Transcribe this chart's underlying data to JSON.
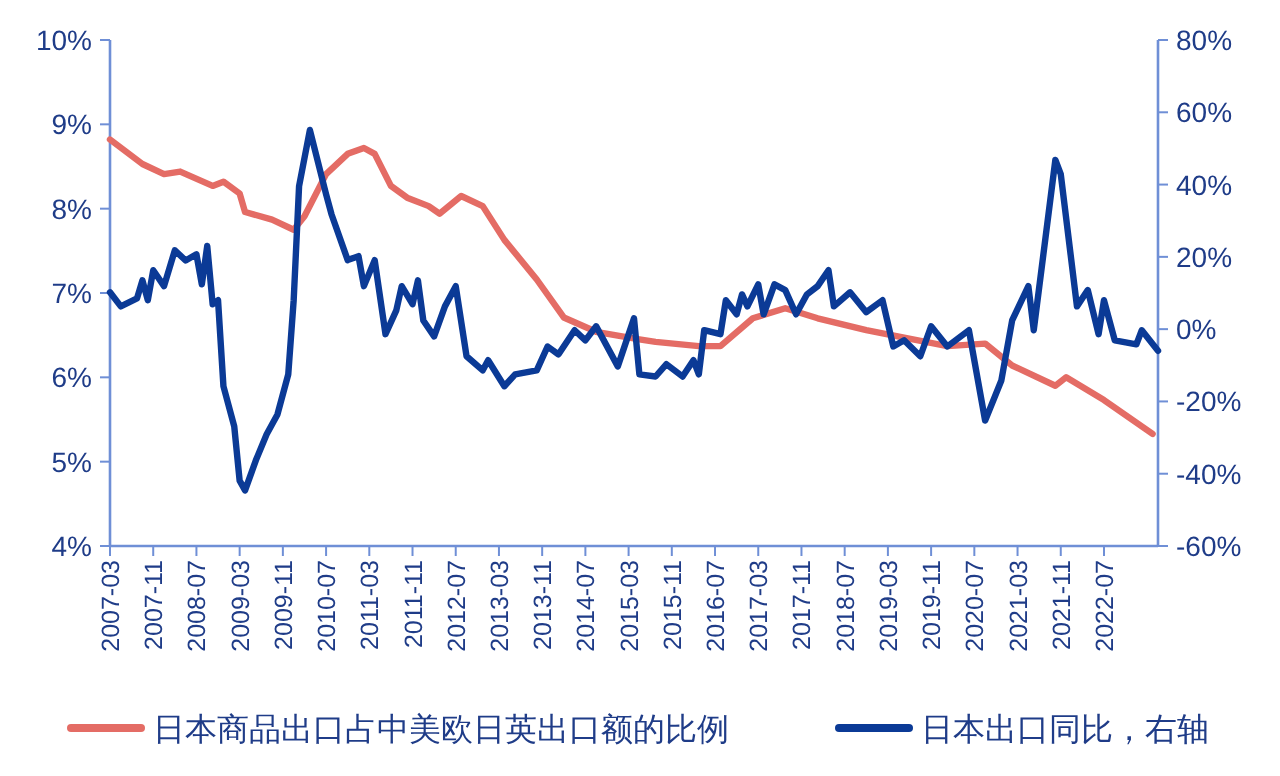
{
  "chart_data": {
    "type": "line",
    "xlim": [
      "2007-03",
      "2023-05"
    ],
    "xticks": [
      "2007-03",
      "2007-11",
      "2008-07",
      "2009-03",
      "2009-11",
      "2010-07",
      "2011-03",
      "2011-11",
      "2012-07",
      "2013-03",
      "2013-11",
      "2014-07",
      "2015-03",
      "2015-11",
      "2016-07",
      "2017-03",
      "2017-11",
      "2018-07",
      "2019-03",
      "2019-11",
      "2020-07",
      "2021-03",
      "2021-11",
      "2022-07"
    ],
    "ylim": [
      4,
      10
    ],
    "yticks": [
      {
        "value": 4,
        "label": "4%"
      },
      {
        "value": 5,
        "label": "5%"
      },
      {
        "value": 6,
        "label": "6%"
      },
      {
        "value": 7,
        "label": "7%"
      },
      {
        "value": 8,
        "label": "8%"
      },
      {
        "value": 9,
        "label": "9%"
      },
      {
        "value": 10,
        "label": "10%"
      }
    ],
    "y2lim": [
      -60,
      80
    ],
    "y2ticks": [
      {
        "value": -60,
        "label": "-60%"
      },
      {
        "value": -40,
        "label": "-40%"
      },
      {
        "value": -20,
        "label": "-20%"
      },
      {
        "value": 0,
        "label": "0%"
      },
      {
        "value": 20,
        "label": "20%"
      },
      {
        "value": 40,
        "label": "40%"
      },
      {
        "value": 60,
        "label": "60%"
      },
      {
        "value": 80,
        "label": "80%"
      }
    ],
    "grid": false,
    "legend": "bottom",
    "line_style": "solid",
    "marker": "none",
    "series": [
      {
        "name": "日本商品出口占中美欧日英出口额的比例",
        "color": "#e46c65",
        "x": [
          "2007-03",
          "2007-09",
          "2008-01",
          "2008-04",
          "2008-10",
          "2008-12",
          "2009-03",
          "2009-04",
          "2009-09",
          "2010-01",
          "2010-03",
          "2010-07",
          "2010-11",
          "2011-02",
          "2011-04",
          "2011-07",
          "2011-10",
          "2012-02",
          "2012-04",
          "2012-08",
          "2012-12",
          "2013-04",
          "2013-10",
          "2014-03",
          "2014-09",
          "2015-05",
          "2015-08",
          "2016-04",
          "2016-08",
          "2017-02",
          "2017-08",
          "2018-02",
          "2018-11",
          "2019-06",
          "2020-02",
          "2020-09",
          "2021-02",
          "2021-10",
          "2021-12",
          "2022-07",
          "2023-04"
        ],
        "values": [
          8.82,
          8.53,
          8.41,
          8.44,
          8.27,
          8.32,
          8.18,
          7.96,
          7.87,
          7.75,
          7.91,
          8.41,
          8.65,
          8.72,
          8.65,
          8.27,
          8.13,
          8.03,
          7.94,
          8.15,
          8.03,
          7.63,
          7.16,
          6.71,
          6.54,
          6.45,
          6.42,
          6.37,
          6.37,
          6.7,
          6.82,
          6.7,
          6.56,
          6.47,
          6.37,
          6.4,
          6.14,
          5.9,
          6.0,
          5.73,
          5.33
        ]
      },
      {
        "name": "日本出口同比，右轴",
        "color": "#0b3a96",
        "axis": "y2",
        "x": [
          "2007-03",
          "2007-05",
          "2007-08",
          "2007-09",
          "2007-10",
          "2007-11",
          "2008-01",
          "2008-03",
          "2008-05",
          "2008-07",
          "2008-08",
          "2008-09",
          "2008-10",
          "2008-11",
          "2008-12",
          "2009-02",
          "2009-03",
          "2009-04",
          "2009-06",
          "2009-08",
          "2009-10",
          "2009-12",
          "2010-01",
          "2010-02",
          "2010-04",
          "2010-07",
          "2010-08",
          "2010-11",
          "2011-01",
          "2011-02",
          "2011-04",
          "2011-06",
          "2011-08",
          "2011-09",
          "2011-11",
          "2011-12",
          "2012-01",
          "2012-03",
          "2012-05",
          "2012-07",
          "2012-09",
          "2012-12",
          "2013-01",
          "2013-04",
          "2013-06",
          "2013-10",
          "2013-12",
          "2014-02",
          "2014-05",
          "2014-07",
          "2014-09",
          "2015-01",
          "2015-04",
          "2015-05",
          "2015-08",
          "2015-10",
          "2016-01",
          "2016-03",
          "2016-04",
          "2016-05",
          "2016-08",
          "2016-09",
          "2016-11",
          "2016-12",
          "2017-01",
          "2017-03",
          "2017-04",
          "2017-06",
          "2017-08",
          "2017-10",
          "2017-12",
          "2018-02",
          "2018-04",
          "2018-05",
          "2018-08",
          "2018-11",
          "2019-02",
          "2019-04",
          "2019-06",
          "2019-09",
          "2019-11",
          "2020-02",
          "2020-06",
          "2020-09",
          "2020-12",
          "2021-02",
          "2021-05",
          "2021-06",
          "2021-10",
          "2021-11",
          "2022-02",
          "2022-04",
          "2022-06",
          "2022-07",
          "2022-09",
          "2023-01",
          "2023-02",
          "2023-05"
        ],
        "values": [
          10.2,
          6.3,
          8.5,
          13.5,
          8,
          16.3,
          11.9,
          21.8,
          19,
          20.7,
          12.4,
          23,
          6.9,
          8,
          -15.8,
          -26.9,
          -41.9,
          -44.6,
          -36.3,
          -29.1,
          -23.6,
          -12.5,
          8,
          39.6,
          55.1,
          37.3,
          31.8,
          19.1,
          20.2,
          11.9,
          19.1,
          -1.4,
          5.2,
          11.9,
          6.9,
          13.5,
          2.4,
          -2,
          6.3,
          11.9,
          -7.5,
          -11.4,
          -8.6,
          -15.8,
          -12.5,
          -11.4,
          -4.8,
          -7,
          -0.3,
          -3.1,
          0.8,
          -10.3,
          3,
          -12.5,
          -13.1,
          -9.7,
          -13.1,
          -8.6,
          -12.5,
          -0.3,
          -1.4,
          8,
          4.1,
          9.6,
          6.3,
          12.4,
          4.1,
          12.4,
          10.8,
          4.1,
          9.6,
          11.9,
          16.3,
          6.3,
          10.2,
          4.7,
          8,
          -4.8,
          -3.1,
          -7.5,
          0.8,
          -4.8,
          -0.3,
          -25.3,
          -14.2,
          2.4,
          11.9,
          -0.3,
          46.8,
          42.9,
          6.3,
          10.8,
          -1.4,
          8,
          -3.1,
          -4.2,
          -0.3,
          -6
        ]
      }
    ]
  }
}
